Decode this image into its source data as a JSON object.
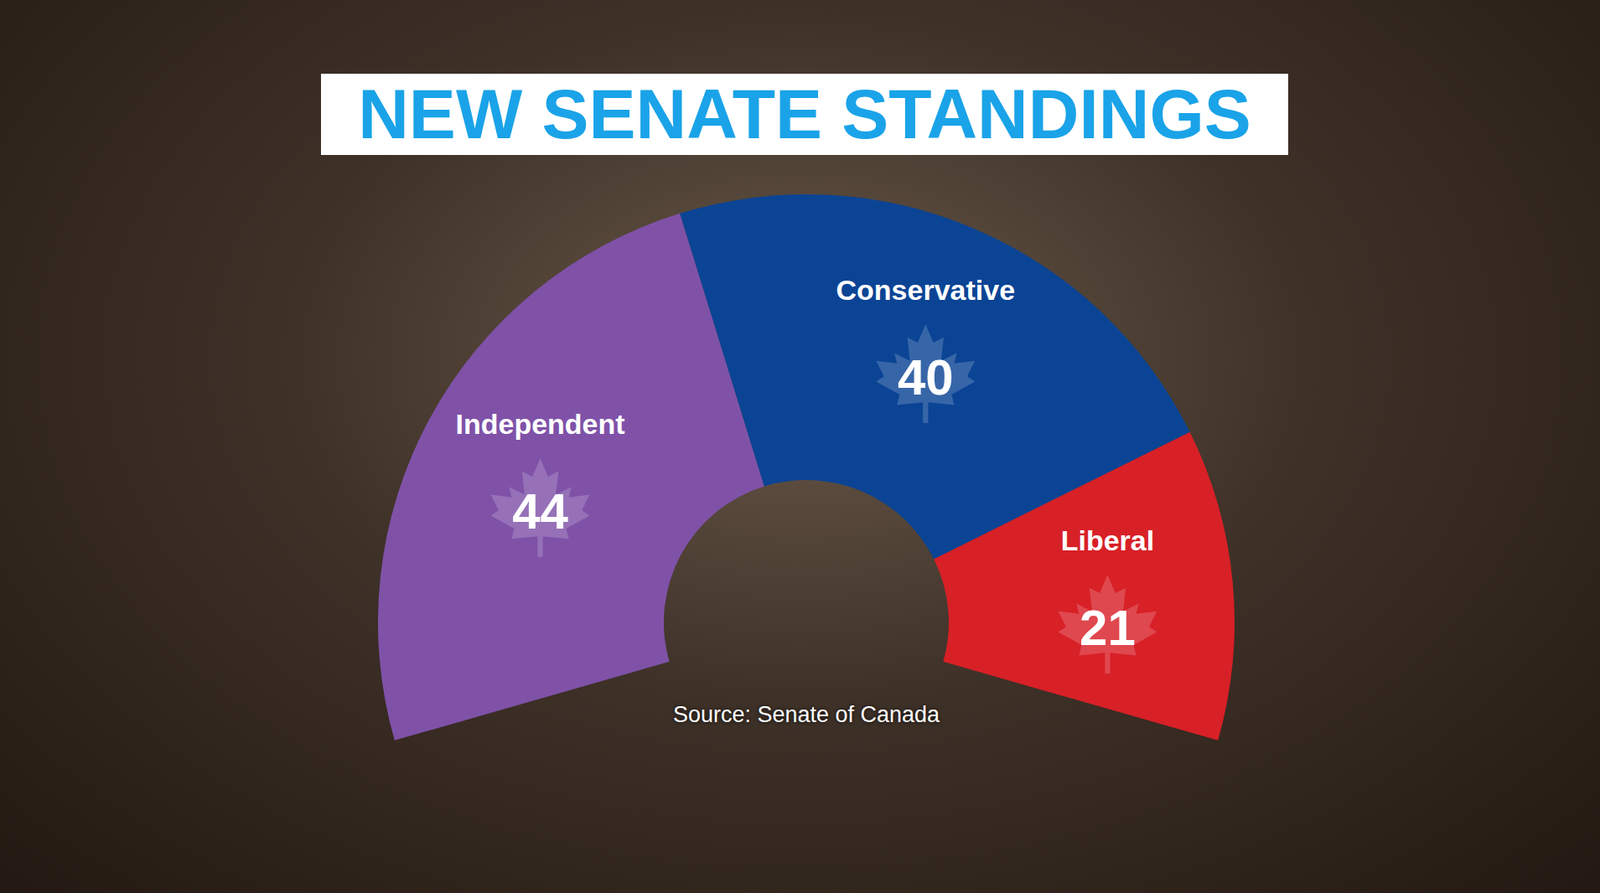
{
  "chart_data": {
    "type": "pie",
    "title": "NEW SENATE STANDINGS",
    "categories": [
      "Independent",
      "Conservative",
      "Liberal"
    ],
    "values": [
      44,
      40,
      21
    ],
    "colors": [
      "#7f52a8",
      "#0b4495",
      "#d82027"
    ],
    "data_labels": true,
    "source": "Source: Senate of Canada"
  }
}
